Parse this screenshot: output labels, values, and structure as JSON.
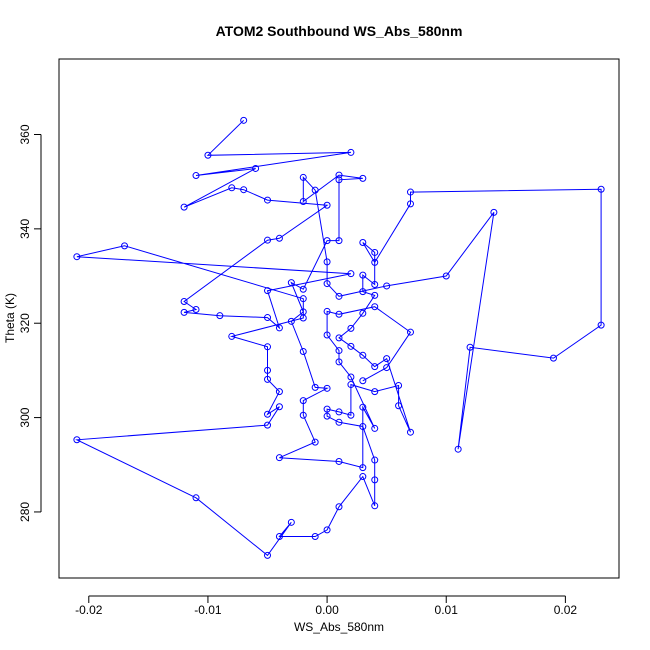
{
  "chart_data": {
    "type": "line",
    "title": "ATOM2 Southbound WS_Abs_580nm",
    "xlabel": "WS_Abs_580nm",
    "ylabel": "Theta (K)",
    "xlim": [
      -0.0225,
      0.0245
    ],
    "ylim": [
      266,
      376
    ],
    "xticks": [
      -0.02,
      -0.01,
      0.0,
      0.01,
      0.02
    ],
    "xtick_labels": [
      "-0.02",
      "-0.01",
      "0.00",
      "0.01",
      "0.02"
    ],
    "yticks": [
      280,
      300,
      320,
      340,
      360
    ],
    "ytick_labels": [
      "280",
      "300",
      "320",
      "340",
      "360"
    ],
    "grid": false,
    "series": [
      {
        "color": "#0000ff",
        "marker": "open-circle",
        "points": [
          [
            -0.007,
            363
          ],
          [
            -0.01,
            355.6
          ],
          [
            0.002,
            356.2
          ],
          [
            -0.011,
            351.3
          ],
          [
            -0.006,
            352.8
          ],
          [
            -0.012,
            344.6
          ],
          [
            -0.008,
            348.7
          ],
          [
            -0.007,
            348.3
          ],
          [
            -0.005,
            346.1
          ],
          [
            0.0,
            345.0
          ],
          [
            -0.004,
            338.0
          ],
          [
            -0.005,
            337.6
          ],
          [
            -0.012,
            324.6
          ],
          [
            -0.011,
            322.9
          ],
          [
            -0.012,
            322.3
          ],
          [
            -0.009,
            321.6
          ],
          [
            -0.005,
            321.2
          ],
          [
            -0.004,
            319.0
          ],
          [
            -0.005,
            326.9
          ],
          [
            0.002,
            330.5
          ],
          [
            -0.021,
            334.1
          ],
          [
            -0.017,
            336.4
          ],
          [
            -0.002,
            325.2
          ],
          [
            -0.002,
            321.1
          ],
          [
            -0.008,
            317.2
          ],
          [
            -0.005,
            315.0
          ],
          [
            -0.005,
            310.0
          ],
          [
            -0.005,
            308.1
          ],
          [
            -0.004,
            305.5
          ],
          [
            -0.005,
            300.7
          ],
          [
            -0.004,
            302.3
          ],
          [
            -0.005,
            298.4
          ],
          [
            -0.021,
            295.3
          ],
          [
            -0.011,
            283.0
          ],
          [
            -0.005,
            270.8
          ],
          [
            -0.003,
            277.8
          ],
          [
            -0.004,
            274.8
          ],
          [
            -0.001,
            274.8
          ],
          [
            0.0,
            276.2
          ],
          [
            0.001,
            281.1
          ],
          [
            0.003,
            287.5
          ],
          [
            0.004,
            281.3
          ],
          [
            0.004,
            286.8
          ],
          [
            0.004,
            291.0
          ],
          [
            0.003,
            298.1
          ],
          [
            0.001,
            299.0
          ],
          [
            0.0,
            300.3
          ],
          [
            0.0,
            301.8
          ],
          [
            0.001,
            301.2
          ],
          [
            0.002,
            300.5
          ],
          [
            0.002,
            307.0
          ],
          [
            0.004,
            305.5
          ],
          [
            0.006,
            306.8
          ],
          [
            0.006,
            302.5
          ],
          [
            0.007,
            296.9
          ],
          [
            0.005,
            312.5
          ],
          [
            0.004,
            310.8
          ],
          [
            0.003,
            313.2
          ],
          [
            0.002,
            315.1
          ],
          [
            0.001,
            316.9
          ],
          [
            0.002,
            318.9
          ],
          [
            0.003,
            322.1
          ],
          [
            0.004,
            325.9
          ],
          [
            0.003,
            326.7
          ],
          [
            0.003,
            330.2
          ],
          [
            0.004,
            328.2
          ],
          [
            0.004,
            335.0
          ],
          [
            0.003,
            337.1
          ],
          [
            0.004,
            332.9
          ],
          [
            0.007,
            345.3
          ],
          [
            0.007,
            347.8
          ],
          [
            0.023,
            348.4
          ],
          [
            0.023,
            319.6
          ],
          [
            0.019,
            312.6
          ],
          [
            0.012,
            314.9
          ],
          [
            0.011,
            293.3
          ],
          [
            0.014,
            343.5
          ],
          [
            0.01,
            330.0
          ],
          [
            0.005,
            327.9
          ],
          [
            0.001,
            325.7
          ],
          [
            0.0,
            328.4
          ],
          [
            0.0,
            333.0
          ],
          [
            -0.001,
            348.2
          ],
          [
            -0.002,
            350.9
          ],
          [
            -0.002,
            345.8
          ],
          [
            0.001,
            351.4
          ],
          [
            0.003,
            350.7
          ],
          [
            0.001,
            350.4
          ],
          [
            0.001,
            337.5
          ],
          [
            0.0,
            337.5
          ],
          [
            -0.002,
            327.2
          ],
          [
            -0.003,
            328.6
          ],
          [
            -0.002,
            322.4
          ],
          [
            -0.003,
            320.4
          ],
          [
            -0.002,
            314.0
          ],
          [
            -0.001,
            306.4
          ],
          [
            0.0,
            306.2
          ],
          [
            -0.002,
            303.6
          ],
          [
            -0.002,
            300.5
          ],
          [
            -0.001,
            294.8
          ],
          [
            -0.004,
            291.5
          ],
          [
            0.001,
            290.7
          ],
          [
            0.003,
            289.4
          ],
          [
            0.003,
            302.2
          ],
          [
            0.004,
            297.7
          ],
          [
            0.002,
            308.6
          ],
          [
            0.001,
            311.8
          ],
          [
            0.001,
            314.2
          ],
          [
            0.0,
            317.5
          ],
          [
            0.0,
            322.5
          ],
          [
            0.001,
            321.9
          ],
          [
            0.004,
            323.5
          ],
          [
            0.007,
            318.1
          ],
          [
            0.005,
            310.6
          ],
          [
            0.003,
            307.8
          ]
        ]
      }
    ]
  }
}
